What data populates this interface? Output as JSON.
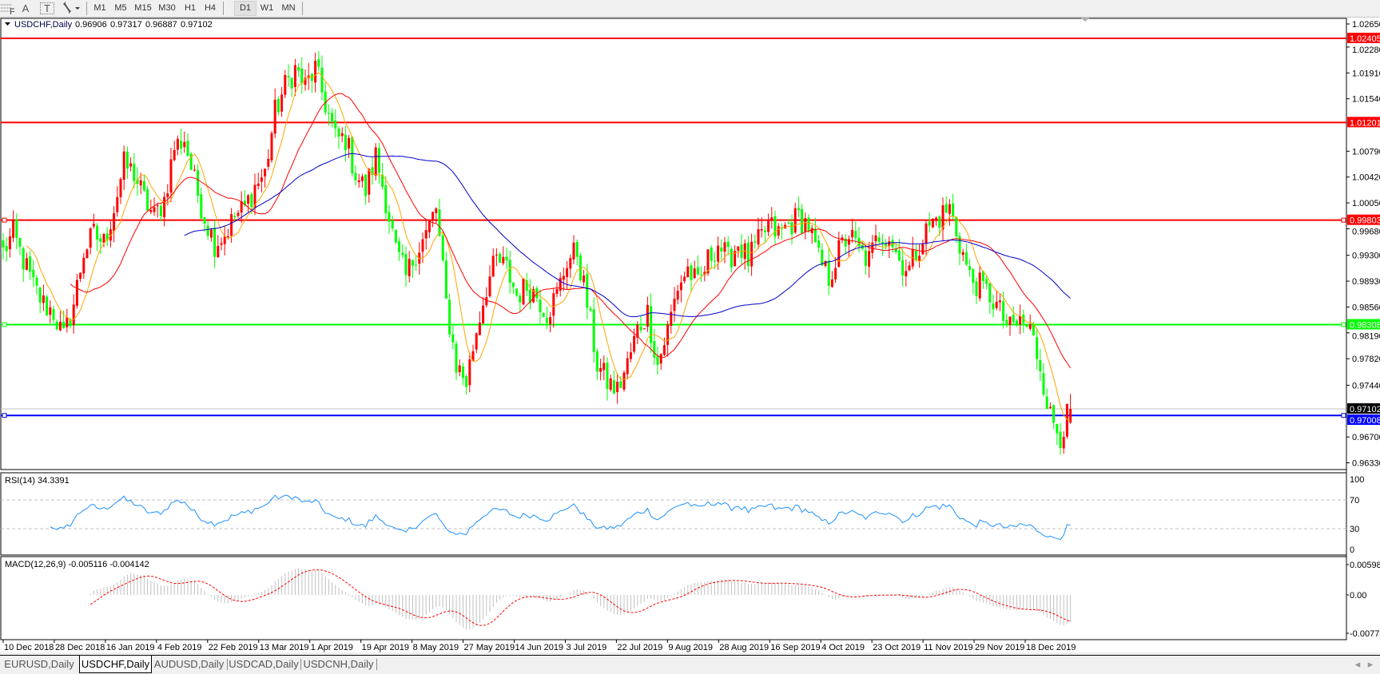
{
  "toolbar": {
    "icons": [
      "fibonacci-icon",
      "text-icon",
      "text-label-icon",
      "arrows-icon",
      "dropdown-icon"
    ],
    "text_icon_label": "A",
    "text_label_icon_label": "T",
    "timeframes": [
      "M1",
      "M5",
      "M15",
      "M30",
      "H1",
      "H4",
      "D1",
      "W1",
      "MN"
    ],
    "active_timeframe": "D1"
  },
  "chart": {
    "symbol_label": "USDCHF,Daily",
    "ohlc": {
      "open": "0.96906",
      "high": "0.97317",
      "low": "0.96887",
      "close": "0.97102"
    },
    "price_ticks": [
      "1.02650",
      "1.02280",
      "1.01910",
      "1.01540",
      "1.00790",
      "1.00420",
      "1.00050",
      "0.99680",
      "0.99300",
      "0.98930",
      "0.98560",
      "0.98190",
      "0.97820",
      "0.97440",
      "0.96700",
      "0.96330"
    ],
    "horizontal_lines": [
      {
        "price": "1.02405",
        "color": "#ff0000"
      },
      {
        "price": "1.01201",
        "color": "#ff0000"
      },
      {
        "price": "0.99803",
        "color": "#ff0000"
      },
      {
        "price": "0.98308",
        "color": "#00ff00"
      },
      {
        "price": "0.97008",
        "color": "#0000ff"
      }
    ],
    "current_price": {
      "price": "0.97102",
      "color": "#000000"
    },
    "colors": {
      "bull": "#ff0000",
      "bear": "#00ff00",
      "ma_fast": "#ffa500",
      "ma_mid": "#ff0000",
      "ma_slow": "#0000cc"
    },
    "dates": [
      "10 Dec 2018",
      "28 Dec 2018",
      "16 Jan 2019",
      "4 Feb 2019",
      "22 Feb 2019",
      "13 Mar 2019",
      "1 Apr 2019",
      "19 Apr 2019",
      "8 May 2019",
      "27 May 2019",
      "14 Jun 2019",
      "3 Jul 2019",
      "22 Jul 2019",
      "9 Aug 2019",
      "28 Aug 2019",
      "16 Sep 2019",
      "4 Oct 2019",
      "23 Oct 2019",
      "11 Nov 2019",
      "29 Nov 2019",
      "18 Dec 2019"
    ]
  },
  "rsi": {
    "label": "RSI(14) 34.3391",
    "ticks": [
      "100",
      "70",
      "30",
      "0"
    ],
    "levels": [
      70,
      30
    ],
    "color": "#1e90ff"
  },
  "macd": {
    "label": "MACD(12,26,9) -0.005116 -0.004142",
    "ticks": [
      "0.005986",
      "0.00",
      "-0.007737"
    ],
    "histogram_color": "#c0c0c0",
    "signal_color": "#ff0000"
  },
  "chart_data": {
    "type": "candlestick",
    "title": "USDCHF,Daily",
    "last_bar": {
      "open": 0.96906,
      "high": 0.97317,
      "low": 0.96887,
      "close": 0.97102
    },
    "x_range": [
      "10 Dec 2018",
      "27 Dec 2019"
    ],
    "ylim": [
      0.9623,
      1.0265
    ],
    "approx_close_path": [
      0.99353,
      0.99602,
      0.99229,
      0.98855,
      0.98607,
      0.98482,
      0.98109,
      0.98607,
      0.99353,
      0.99602,
      0.99477,
      0.99975,
      1.00597,
      1.00473,
      1.001,
      0.99851,
      1.001,
      1.00846,
      1.0097,
      1.00348,
      0.99851,
      0.99477,
      0.99602,
      0.99851,
      0.99975,
      1.00286,
      1.00473,
      1.01344,
      1.01717,
      1.01966,
      1.01717,
      1.01966,
      1.01468,
      1.0097,
      1.0097,
      1.00473,
      1.00224,
      1.00722,
      1.001,
      0.99353,
      0.9898,
      0.99353,
      0.99602,
      0.99975,
      0.98607,
      0.97736,
      0.97487,
      0.98233,
      0.98855,
      0.99229,
      0.99104,
      0.98731,
      0.98855,
      0.98731,
      0.98482,
      0.98731,
      0.99229,
      0.99353,
      0.98607,
      0.97736,
      0.97487,
      0.97363,
      0.97736,
      0.98233,
      0.98482,
      0.97736,
      0.98233,
      0.98855,
      0.99104,
      0.98855,
      0.99229,
      0.99477,
      0.99229,
      0.99477,
      0.99229,
      0.99477,
      0.99726,
      0.99602,
      0.99726,
      0.99851,
      0.99726,
      0.99229,
      0.9898,
      0.99353,
      0.99602,
      0.99353,
      0.99229,
      0.99602,
      0.99602,
      0.99229,
      0.99104,
      0.99477,
      0.99726,
      0.99851,
      0.99975,
      0.99477,
      0.9898,
      0.98855,
      0.98731,
      0.98482,
      0.98233,
      0.98358,
      0.98233,
      0.97736,
      0.96989,
      0.9674,
      0.97102
    ]
  },
  "tabs": [
    {
      "label": "EURUSD,Daily",
      "active": false
    },
    {
      "label": "USDCHF,Daily",
      "active": true
    },
    {
      "label": "AUDUSD,Daily",
      "active": false
    },
    {
      "label": "USDCAD,Daily",
      "active": false
    },
    {
      "label": "USDCNH,Daily",
      "active": false
    }
  ]
}
